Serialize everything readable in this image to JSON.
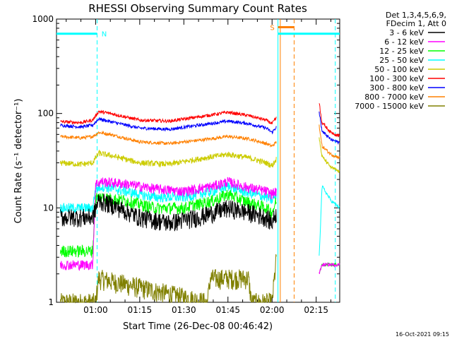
{
  "chart_data": {
    "type": "line",
    "title": "RHESSI Observing Summary Count Rates",
    "xlabel": "Start Time (26-Dec-08 00:46:42)",
    "ylabel": "Count Rate (s⁻¹ detector⁻¹)",
    "ylog": true,
    "ylim": [
      1,
      1000
    ],
    "xlim_minutes": [
      46.7,
      143.0
    ],
    "x_ticks": [
      {
        "label": "01:00",
        "minutes": 60
      },
      {
        "label": "01:15",
        "minutes": 75
      },
      {
        "label": "01:30",
        "minutes": 90
      },
      {
        "label": "01:45",
        "minutes": 105
      },
      {
        "label": "02:00",
        "minutes": 120
      },
      {
        "label": "02:15",
        "minutes": 135
      }
    ],
    "y_ticks": [
      {
        "label": "1",
        "value": 1
      },
      {
        "label": "10",
        "value": 10
      },
      {
        "label": "100",
        "value": 100
      },
      {
        "label": "1000",
        "value": 1000
      }
    ],
    "legend": {
      "position": "right",
      "header": [
        "Det 1,3,4,5,6,9,",
        "FDecim 1, Att 0"
      ]
    },
    "series": [
      {
        "name": "3 - 6 keV",
        "color": "#000000",
        "x": [
          48,
          55,
          59,
          61,
          65,
          75,
          85,
          95,
          105,
          112,
          118,
          120,
          121.5
        ],
        "y": [
          8,
          8,
          8,
          12,
          11,
          8,
          7,
          8,
          10,
          9,
          8,
          7,
          9
        ]
      },
      {
        "name": "6 - 12 keV",
        "color": "#ff00ff",
        "x": [
          48,
          59,
          60,
          62,
          70,
          80,
          90,
          100,
          105,
          110,
          118,
          120,
          121.5
        ],
        "y": [
          2.5,
          2.5,
          18,
          19,
          18,
          16,
          15,
          17,
          19,
          17,
          15,
          14,
          15
        ]
      },
      {
        "name": "12 - 25 keV",
        "color": "#00ff00",
        "x": [
          48,
          59,
          60,
          62,
          70,
          80,
          90,
          100,
          105,
          110,
          118,
          120,
          121.5
        ],
        "y": [
          3.5,
          3.5,
          13,
          13,
          12,
          10,
          10,
          12,
          14,
          12,
          10,
          9,
          12
        ]
      },
      {
        "name": "25 - 50 keV",
        "color": "#00ffff",
        "x": [
          48,
          59,
          60,
          62,
          70,
          80,
          90,
          100,
          105,
          110,
          118,
          120,
          121.5
        ],
        "y": [
          10,
          10,
          16,
          17,
          15,
          13,
          13,
          15,
          17,
          15,
          13,
          12,
          14
        ]
      },
      {
        "name": "50 - 100 keV",
        "color": "#cccc00",
        "x": [
          48,
          55,
          59,
          61,
          65,
          75,
          85,
          95,
          105,
          112,
          118,
          120,
          121.5
        ],
        "y": [
          30,
          29,
          30,
          38,
          36,
          30,
          29,
          33,
          37,
          34,
          30,
          28,
          33
        ]
      },
      {
        "name": "100 - 300 keV",
        "color": "#ff0000",
        "x": [
          48,
          55,
          59,
          61,
          65,
          75,
          85,
          95,
          105,
          112,
          118,
          120,
          121.5
        ],
        "y": [
          82,
          80,
          85,
          105,
          100,
          85,
          83,
          92,
          103,
          95,
          85,
          78,
          90
        ]
      },
      {
        "name": "300 - 800 keV",
        "color": "#0000ff",
        "x": [
          48,
          55,
          59,
          61,
          65,
          75,
          85,
          95,
          105,
          112,
          118,
          120,
          121.5
        ],
        "y": [
          75,
          72,
          75,
          88,
          82,
          70,
          68,
          75,
          83,
          78,
          70,
          63,
          72
        ]
      },
      {
        "name": "800 - 7000 keV",
        "color": "#ff8000",
        "x": [
          48,
          55,
          59,
          61,
          65,
          75,
          85,
          95,
          105,
          112,
          118,
          120,
          121.5
        ],
        "y": [
          57,
          55,
          57,
          63,
          60,
          50,
          48,
          52,
          57,
          54,
          48,
          45,
          50
        ]
      },
      {
        "name": "7000 - 15000 keV",
        "color": "#808000",
        "x": [
          48,
          60,
          61,
          98,
          99,
          112,
          113,
          120,
          121.5
        ],
        "y": [
          1,
          1,
          1.8,
          1,
          1.8,
          1.8,
          1,
          1,
          3
        ]
      }
    ],
    "post_gap_series": [
      {
        "color": "#ff0000",
        "x": [
          136,
          137,
          140,
          143
        ],
        "y": [
          130,
          80,
          63,
          58
        ]
      },
      {
        "color": "#0000ff",
        "x": [
          136,
          137,
          140,
          143
        ],
        "y": [
          105,
          65,
          53,
          49
        ]
      },
      {
        "color": "#ff8000",
        "x": [
          136,
          137,
          140,
          143
        ],
        "y": [
          75,
          45,
          37,
          34
        ]
      },
      {
        "color": "#cccc00",
        "x": [
          136,
          137,
          140,
          143
        ],
        "y": [
          55,
          35,
          27,
          24
        ]
      },
      {
        "color": "#00ffff",
        "x": [
          136,
          137,
          140,
          143
        ],
        "y": [
          3,
          17,
          12,
          10
        ]
      },
      {
        "color": "#00ff00",
        "x": [
          136,
          137,
          140,
          143
        ],
        "y": [
          2,
          2.5,
          2.5,
          2.5
        ]
      },
      {
        "color": "#ff00ff",
        "x": [
          136,
          137,
          140,
          143
        ],
        "y": [
          2,
          2.5,
          2.5,
          2.5
        ]
      }
    ],
    "segment_markers": [
      {
        "label": "N",
        "color": "#00ffff",
        "start_minutes": 46.7,
        "end_minutes": 60.5,
        "value": 700
      },
      {
        "label": "S",
        "color": "#ff8000",
        "start_minutes": 122,
        "end_minutes": 127.5,
        "value": 820
      }
    ],
    "flag_bars": [
      {
        "color": "#00ffff",
        "start_minutes": 122,
        "end_minutes": 143,
        "value": 700
      }
    ],
    "vertical_lines": [
      {
        "color": "#00ffff",
        "minutes": 60.5,
        "style": "dashed"
      },
      {
        "color": "#00ffff",
        "minutes": 122,
        "style": "solid"
      },
      {
        "color": "#ff8000",
        "minutes": 122.8,
        "style": "solid"
      },
      {
        "color": "#ff8000",
        "minutes": 127.5,
        "style": "dashed"
      },
      {
        "color": "#00ffff",
        "minutes": 141.5,
        "style": "dashed"
      }
    ]
  },
  "footer": {
    "date": "16-Oct-2021 09:15"
  }
}
